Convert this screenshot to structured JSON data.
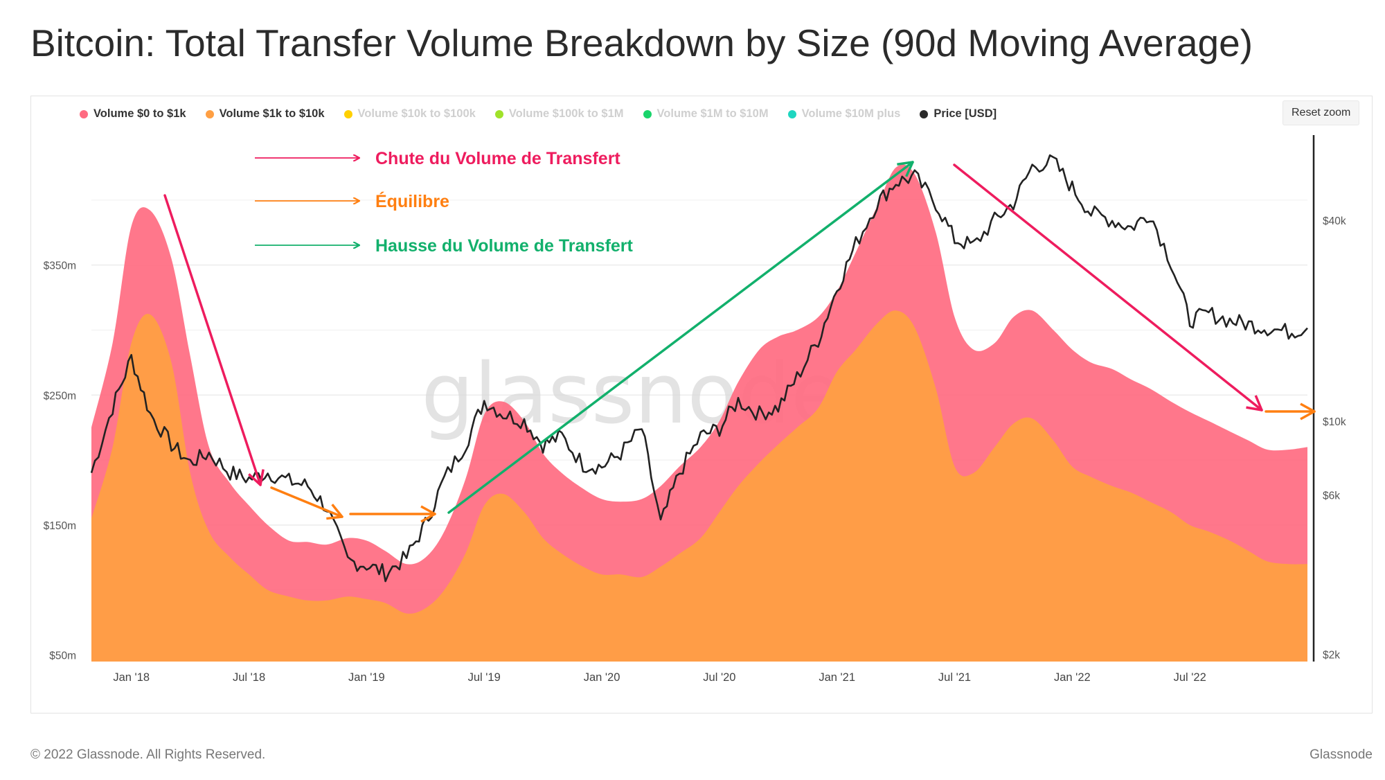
{
  "header": {
    "title": "Bitcoin: Total Transfer Volume Breakdown by Size (90d Moving Average)"
  },
  "toolbar": {
    "reset_zoom": "Reset zoom"
  },
  "watermark": "glassnode",
  "footer": {
    "copyright": "© 2022 Glassnode. All Rights Reserved.",
    "brand": "Glassnode"
  },
  "chart_data": {
    "type": "area",
    "title": "Bitcoin: Total Transfer Volume Breakdown by Size (90d Moving Average)",
    "legend": [
      {
        "name": "Volume $0 to $1k",
        "color": "#ff6b81",
        "active": true
      },
      {
        "name": "Volume $1k to $10k",
        "color": "#ff9f43",
        "active": true
      },
      {
        "name": "Volume $10k to $100k",
        "color": "#ffd000",
        "active": false
      },
      {
        "name": "Volume $100k to $1M",
        "color": "#a0e22a",
        "active": false
      },
      {
        "name": "Volume $1M to $10M",
        "color": "#19d46b",
        "active": false
      },
      {
        "name": "Volume $10M plus",
        "color": "#1ed6c0",
        "active": false
      },
      {
        "name": "Price [USD]",
        "color": "#2a2a2a",
        "active": true
      }
    ],
    "legend_position": "top-left",
    "y_left": {
      "ticks": [
        "$50m",
        "$150m",
        "$250m",
        "$350m"
      ],
      "tick_values": [
        50,
        150,
        250,
        350
      ],
      "range": [
        45,
        450
      ]
    },
    "y_right": {
      "scale": "log",
      "ticks": [
        "$2k",
        "$6k",
        "$10k",
        "$40k"
      ],
      "tick_values": [
        2000,
        6000,
        10000,
        40000
      ],
      "range": [
        1900,
        72000
      ]
    },
    "x_ticks": [
      "Jan '18",
      "Jul '18",
      "Jan '19",
      "Jul '19",
      "Jan '20",
      "Jul '20",
      "Jan '21",
      "Jul '21",
      "Jan '22",
      "Jul '22"
    ],
    "grid": "horizontal",
    "x": [
      2017.83,
      2017.92,
      2018.0,
      2018.08,
      2018.17,
      2018.25,
      2018.33,
      2018.42,
      2018.5,
      2018.58,
      2018.67,
      2018.75,
      2018.83,
      2018.92,
      2019.0,
      2019.08,
      2019.17,
      2019.25,
      2019.33,
      2019.42,
      2019.5,
      2019.58,
      2019.67,
      2019.75,
      2019.83,
      2019.92,
      2020.0,
      2020.08,
      2020.17,
      2020.25,
      2020.33,
      2020.42,
      2020.5,
      2020.58,
      2020.67,
      2020.75,
      2020.83,
      2020.92,
      2021.0,
      2021.08,
      2021.17,
      2021.25,
      2021.33,
      2021.42,
      2021.5,
      2021.58,
      2021.67,
      2021.75,
      2021.83,
      2021.92,
      2022.0,
      2022.08,
      2022.17,
      2022.25,
      2022.33,
      2022.42,
      2022.5,
      2022.58,
      2022.67,
      2022.75,
      2022.83,
      2022.92,
      2023.0
    ],
    "series": [
      {
        "name": "Volume $1k to $10k",
        "values": [
          155,
          210,
          290,
          312,
          275,
          190,
          145,
          125,
          112,
          100,
          95,
          92,
          92,
          95,
          93,
          90,
          82,
          86,
          100,
          128,
          165,
          174,
          160,
          140,
          128,
          118,
          112,
          112,
          110,
          118,
          128,
          140,
          160,
          180,
          198,
          212,
          225,
          240,
          268,
          285,
          305,
          315,
          302,
          255,
          195,
          190,
          210,
          228,
          232,
          215,
          195,
          187,
          180,
          175,
          168,
          160,
          150,
          145,
          138,
          130,
          122,
          120,
          120
        ]
      },
      {
        "name": "Volume $0 to $1k",
        "values": [
          225,
          290,
          380,
          392,
          355,
          280,
          210,
          182,
          165,
          150,
          138,
          137,
          135,
          140,
          138,
          130,
          120,
          125,
          145,
          185,
          235,
          245,
          230,
          205,
          190,
          178,
          170,
          168,
          170,
          180,
          195,
          210,
          230,
          260,
          285,
          295,
          300,
          310,
          330,
          360,
          395,
          425,
          420,
          375,
          310,
          285,
          290,
          310,
          315,
          300,
          285,
          275,
          270,
          262,
          255,
          245,
          237,
          230,
          222,
          215,
          208,
          208,
          210
        ]
      }
    ],
    "price_series": {
      "name": "Price [USD]",
      "values": [
        7000,
        11000,
        15500,
        10500,
        8500,
        7500,
        8000,
        7000,
        6700,
        7000,
        6600,
        6400,
        5500,
        3800,
        3700,
        3500,
        3900,
        4900,
        6700,
        8500,
        11500,
        10500,
        10000,
        8500,
        9000,
        7400,
        7300,
        8000,
        9500,
        4900,
        7000,
        9000,
        9500,
        11500,
        10500,
        11000,
        13500,
        17500,
        25000,
        34000,
        45000,
        52000,
        54000,
        45000,
        35000,
        33500,
        40000,
        45000,
        58000,
        60000,
        50000,
        42000,
        40000,
        38000,
        42000,
        30000,
        20000,
        21000,
        20000,
        19500,
        19000,
        18500,
        19000
      ]
    },
    "annotations": [
      {
        "label": "Chute du Volume de Transfert",
        "color": "#ee1c5e"
      },
      {
        "label": "Équilibre",
        "color": "#ff7f11"
      },
      {
        "label": "Hausse du Volume de Transfert",
        "color": "#12b06c"
      }
    ]
  }
}
